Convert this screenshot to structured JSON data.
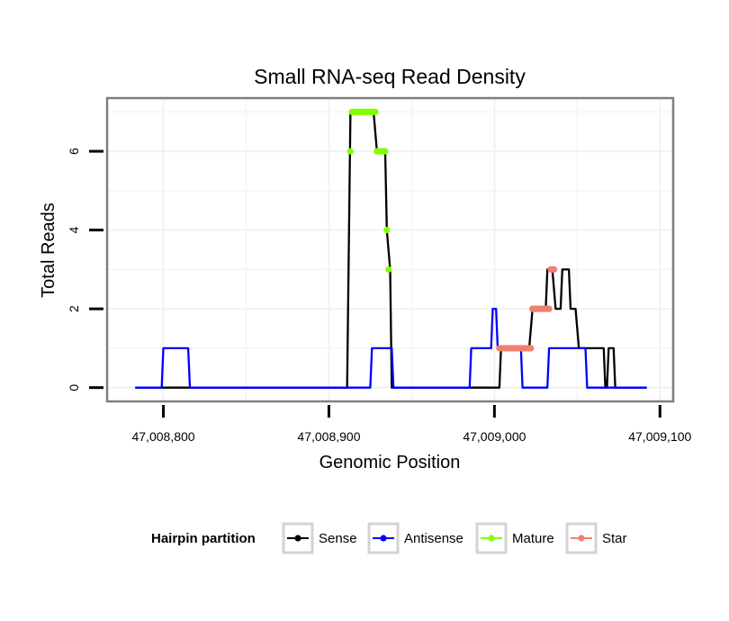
{
  "chart_data": {
    "type": "line",
    "title": "Small RNA-seq Read Density",
    "xlabel": "Genomic Position",
    "ylabel": "Total Reads",
    "xlim": [
      47008766,
      47009108
    ],
    "ylim": [
      -0.35,
      7.35
    ],
    "x_ticks": [
      47008800,
      47008900,
      47009000,
      47009100
    ],
    "x_tick_labels": [
      "47,008,800",
      "47,008,900",
      "47,009,000",
      "47,009,100"
    ],
    "y_ticks": [
      0,
      2,
      4,
      6
    ],
    "y_tick_labels": [
      "0",
      "2",
      "4",
      "6"
    ],
    "grid": true,
    "legend": {
      "title": "Hairpin partition",
      "position": "bottom",
      "entries": [
        "Sense",
        "Antisense",
        "Mature",
        "Star"
      ]
    },
    "series": [
      {
        "name": "Sense",
        "color": "#000000",
        "style": "line",
        "x": [
          47008783,
          47008911,
          47008913,
          47008927,
          47008929,
          47008934,
          47008935,
          47008937,
          47008938,
          47009003,
          47009004,
          47009021,
          47009023,
          47009031,
          47009032,
          47009035,
          47009037,
          47009040,
          47009041,
          47009045,
          47009046,
          47009049,
          47009051,
          47009066,
          47009067,
          47009068,
          47009069,
          47009072,
          47009073,
          47009092
        ],
        "values": [
          0,
          0,
          7,
          7,
          6,
          6,
          4,
          3,
          0,
          0,
          1,
          1,
          2,
          2,
          3,
          3,
          2,
          2,
          3,
          3,
          2,
          2,
          1,
          1,
          0,
          0,
          1,
          1,
          0,
          0
        ]
      },
      {
        "name": "Antisense",
        "color": "#0000ff",
        "style": "line",
        "x": [
          47008783,
          47008799,
          47008800,
          47008815,
          47008816,
          47008925,
          47008926,
          47008938,
          47008939,
          47008985,
          47008986,
          47008998,
          47008999,
          47009001,
          47009002,
          47009016,
          47009017,
          47009032,
          47009033,
          47009055,
          47009056,
          47009067,
          47009068,
          47009092
        ],
        "values": [
          0,
          0,
          1,
          1,
          0,
          0,
          1,
          1,
          0,
          0,
          1,
          1,
          2,
          2,
          1,
          1,
          0,
          0,
          1,
          1,
          0,
          0,
          0,
          0
        ]
      },
      {
        "name": "Mature",
        "color": "#7fff00",
        "style": "points",
        "x": [
          47008913,
          47008914,
          47008915,
          47008916,
          47008917,
          47008918,
          47008919,
          47008920,
          47008921,
          47008922,
          47008923,
          47008924,
          47008925,
          47008926,
          47008927,
          47008928,
          47008929,
          47008930,
          47008931,
          47008932,
          47008933,
          47008934,
          47008935,
          47008936
        ],
        "values": [
          6,
          7,
          7,
          7,
          7,
          7,
          7,
          7,
          7,
          7,
          7,
          7,
          7,
          7,
          7,
          7,
          6,
          6,
          6,
          6,
          6,
          6,
          4,
          3
        ]
      },
      {
        "name": "Star",
        "color": "#f08070",
        "style": "points",
        "x": [
          47009003,
          47009004,
          47009005,
          47009006,
          47009007,
          47009008,
          47009009,
          47009010,
          47009011,
          47009012,
          47009013,
          47009014,
          47009015,
          47009016,
          47009017,
          47009018,
          47009019,
          47009020,
          47009021,
          47009022,
          47009023,
          47009024,
          47009025,
          47009026,
          47009027,
          47009028,
          47009029,
          47009030,
          47009031,
          47009032,
          47009033,
          47009034,
          47009035,
          47009036
        ],
        "values": [
          1,
          1,
          1,
          1,
          1,
          1,
          1,
          1,
          1,
          1,
          1,
          1,
          1,
          1,
          1,
          1,
          1,
          1,
          1,
          1,
          2,
          2,
          2,
          2,
          2,
          2,
          2,
          2,
          2,
          2,
          2,
          3,
          3,
          3
        ]
      }
    ]
  }
}
